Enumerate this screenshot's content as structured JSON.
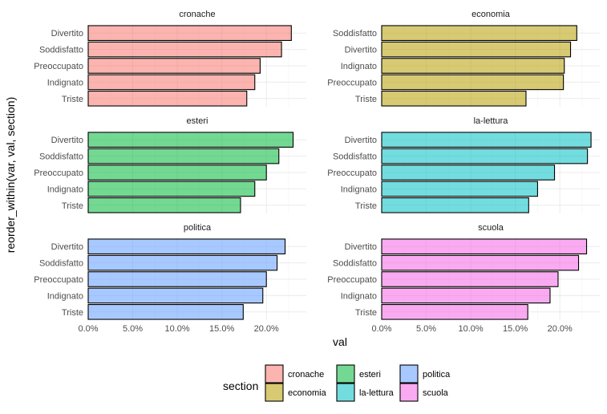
{
  "chart_data": {
    "type": "bar",
    "orientation": "horizontal",
    "facet_by": "section",
    "xlabel": "val",
    "ylabel": "reorder_within(var, val, section)",
    "xlim": [
      0,
      0.245
    ],
    "x_ticks": [
      0,
      0.05,
      0.1,
      0.15,
      0.2
    ],
    "x_tick_labels": [
      "0.0%",
      "5.0%",
      "10.0%",
      "15.0%",
      "20.0%"
    ],
    "grid": true,
    "legend": {
      "title": "section",
      "position": "bottom",
      "items": [
        {
          "label": "cronache",
          "color": "#F8766D"
        },
        {
          "label": "economia",
          "color": "#B79F00"
        },
        {
          "label": "esteri",
          "color": "#00BA38"
        },
        {
          "label": "la-lettura",
          "color": "#00BFC4"
        },
        {
          "label": "politica",
          "color": "#619CFF"
        },
        {
          "label": "scuola",
          "color": "#F564E3"
        }
      ]
    },
    "panels": [
      {
        "section": "cronache",
        "color": "#F8766D",
        "categories": [
          "Divertito",
          "Soddisfatto",
          "Preoccupato",
          "Indignato",
          "Triste"
        ],
        "values": [
          0.228,
          0.217,
          0.193,
          0.187,
          0.178
        ]
      },
      {
        "section": "economia",
        "color": "#B79F00",
        "categories": [
          "Soddisfatto",
          "Divertito",
          "Indignato",
          "Preoccupato",
          "Triste"
        ],
        "values": [
          0.219,
          0.212,
          0.205,
          0.204,
          0.162
        ]
      },
      {
        "section": "esteri",
        "color": "#00BA38",
        "categories": [
          "Divertito",
          "Soddisfatto",
          "Preoccupato",
          "Indignato",
          "Triste"
        ],
        "values": [
          0.23,
          0.214,
          0.2,
          0.187,
          0.171
        ]
      },
      {
        "section": "la-lettura",
        "color": "#00BFC4",
        "categories": [
          "Divertito",
          "Soddisfatto",
          "Preoccupato",
          "Indignato",
          "Triste"
        ],
        "values": [
          0.235,
          0.231,
          0.194,
          0.175,
          0.165
        ]
      },
      {
        "section": "politica",
        "color": "#619CFF",
        "categories": [
          "Divertito",
          "Soddisfatto",
          "Preoccupato",
          "Indignato",
          "Triste"
        ],
        "values": [
          0.221,
          0.212,
          0.2,
          0.196,
          0.174
        ]
      },
      {
        "section": "scuola",
        "color": "#F564E3",
        "categories": [
          "Divertito",
          "Soddisfatto",
          "Preoccupato",
          "Indignato",
          "Triste"
        ],
        "values": [
          0.23,
          0.221,
          0.198,
          0.189,
          0.164
        ]
      }
    ]
  }
}
